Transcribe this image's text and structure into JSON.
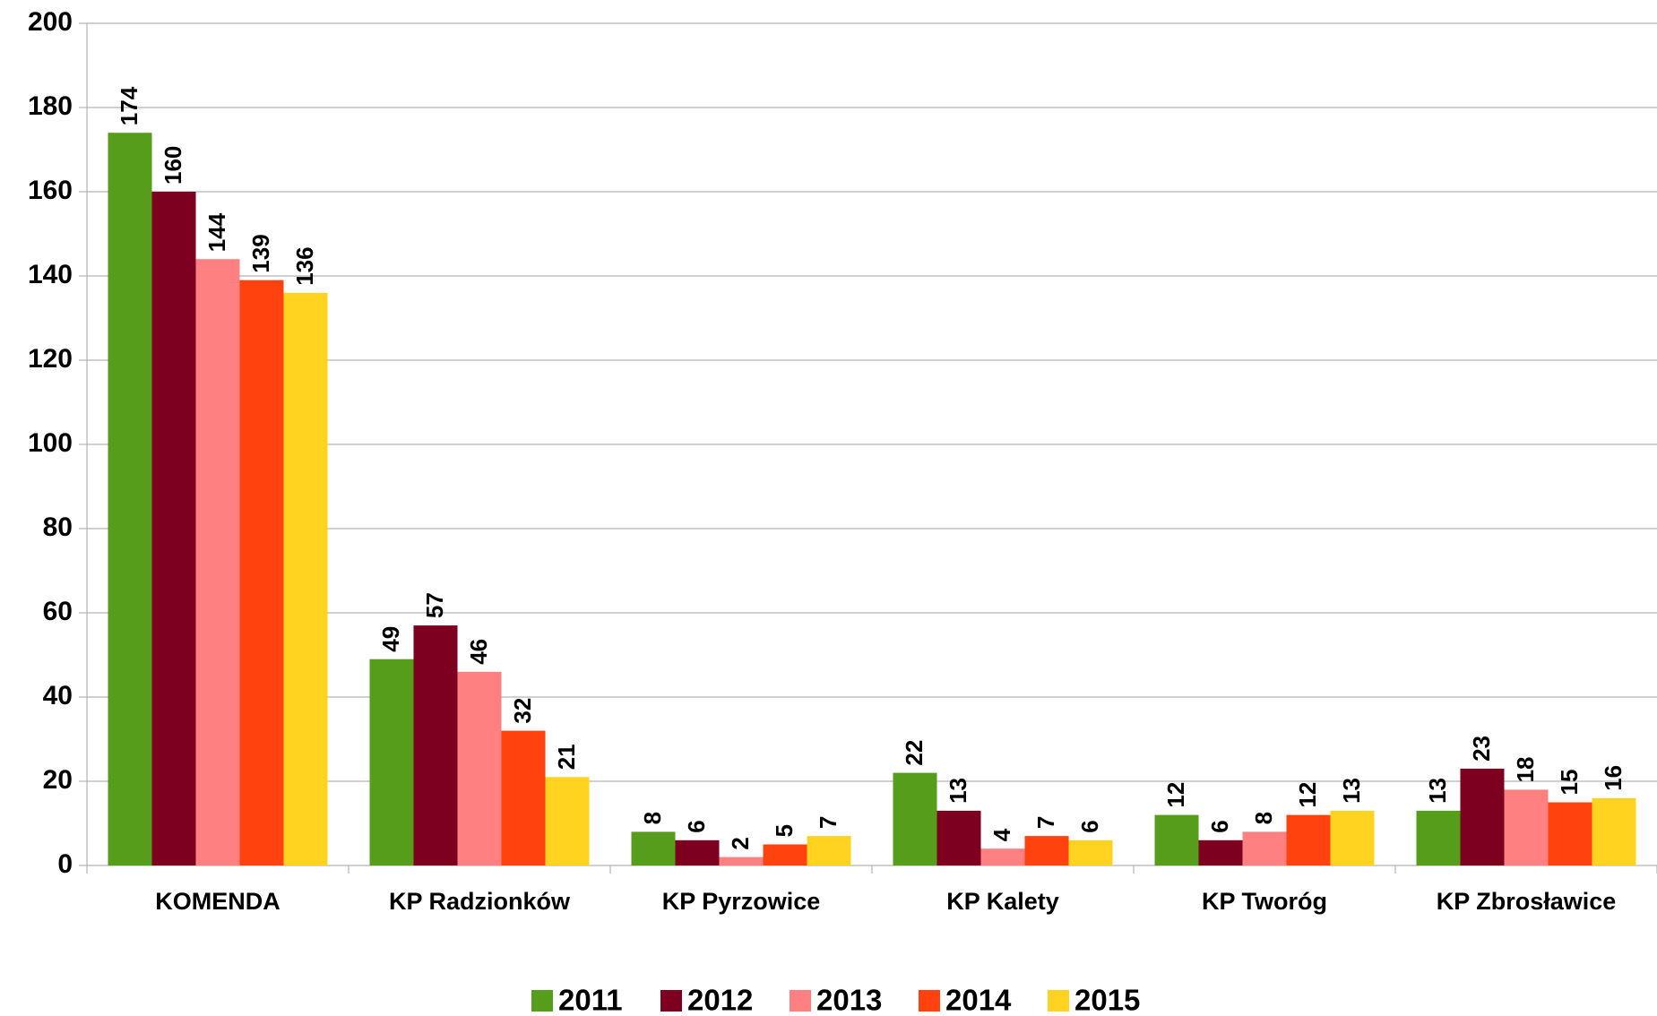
{
  "chart_data": {
    "type": "bar",
    "categories": [
      "KOMENDA",
      "KP Radzionków",
      "KP Pyrzowice",
      "KP Kalety",
      "KP Tworóg",
      "KP Zbrosławice"
    ],
    "series": [
      {
        "name": "2011",
        "color": "#579d1c",
        "values": [
          174,
          49,
          8,
          22,
          12,
          13
        ]
      },
      {
        "name": "2012",
        "color": "#7e0021",
        "values": [
          160,
          57,
          6,
          13,
          6,
          23
        ]
      },
      {
        "name": "2013",
        "color": "#ff8080",
        "values": [
          144,
          46,
          2,
          4,
          8,
          18
        ]
      },
      {
        "name": "2014",
        "color": "#ff420e",
        "values": [
          139,
          32,
          5,
          7,
          12,
          15
        ]
      },
      {
        "name": "2015",
        "color": "#ffd320",
        "values": [
          136,
          21,
          7,
          6,
          13,
          16
        ]
      }
    ],
    "ylim": [
      0,
      200
    ],
    "yticks": [
      0,
      20,
      40,
      60,
      80,
      100,
      120,
      140,
      160,
      180,
      200
    ],
    "grid": true,
    "legend": "bottom",
    "data_labels": true
  }
}
